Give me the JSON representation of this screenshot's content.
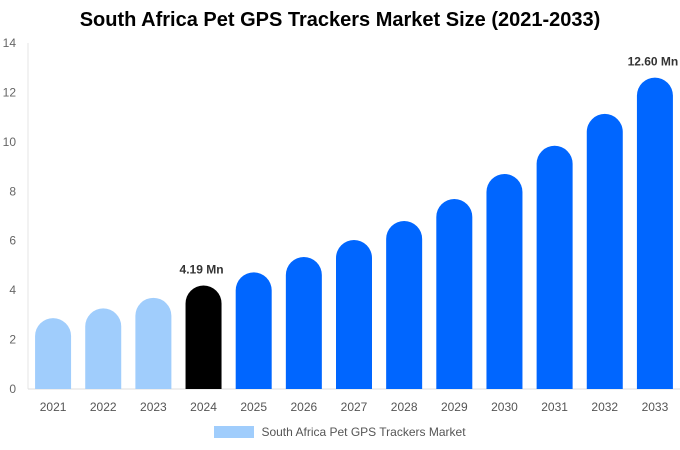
{
  "chart_data": {
    "type": "bar",
    "title": "South Africa Pet GPS Trackers Market Size (2021-2033)",
    "categories": [
      "2021",
      "2022",
      "2023",
      "2024",
      "2025",
      "2026",
      "2027",
      "2028",
      "2029",
      "2030",
      "2031",
      "2032",
      "2033"
    ],
    "series": [
      {
        "name": "South Africa Pet GPS Trackers Market",
        "values": [
          2.87,
          3.26,
          3.69,
          4.19,
          4.72,
          5.34,
          6.03,
          6.8,
          7.69,
          8.7,
          9.84,
          11.13,
          12.6
        ]
      }
    ],
    "data_labels": {
      "3": "4.19 Mn",
      "12": "12.60 Mn"
    },
    "ylim": [
      0,
      14
    ],
    "yticks": [
      0,
      2,
      4,
      6,
      8,
      10,
      12,
      14
    ],
    "grid": false,
    "legend": "bottom",
    "colors": {
      "historical": "#a0cdfc",
      "base_year": "#000000",
      "forecast": "#0066ff"
    }
  }
}
